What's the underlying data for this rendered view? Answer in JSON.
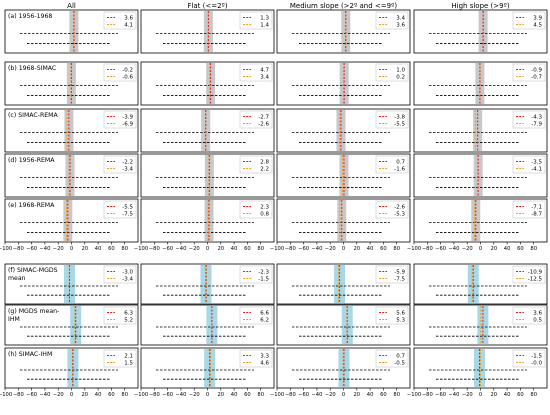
{
  "columns": [
    "All",
    "Flat (<=2º)",
    "Medium slope (>2º and <=9º)",
    "High slope (>9º)"
  ],
  "colors": {
    "mean_line": "#e0201c",
    "median_line": "#e8a020",
    "band_gray": "#c8c8c8",
    "band_blue": "#a8d8e6",
    "dashed": "#000000",
    "frame": "#000000"
  },
  "chart_data": {
    "type": "multi-panel",
    "x_axis": {
      "ticks": [
        -100,
        -80,
        -60,
        -40,
        -20,
        0,
        20,
        40,
        60,
        80
      ],
      "range": [
        -100,
        100
      ]
    },
    "group1": {
      "band_color": "gray",
      "rows": [
        {
          "label": "(a) 1956-1968",
          "values": [
            [
              3.6,
              4.1
            ],
            [
              1.3,
              1.4
            ],
            [
              3.4,
              3.6
            ],
            [
              3.9,
              4.5
            ]
          ]
        },
        {
          "label": "(b) 1968-SIMAC",
          "values": [
            [
              -0.2,
              -0.6
            ],
            [
              4.7,
              3.4
            ],
            [
              1.0,
              0.2
            ],
            [
              -0.9,
              -0.7
            ]
          ]
        },
        {
          "label": "(c) SIMAC-REMA",
          "values": [
            [
              -3.9,
              -6.9
            ],
            [
              -2.7,
              -2.6
            ],
            [
              -3.8,
              -5.5
            ],
            [
              -4.3,
              -7.9
            ]
          ]
        },
        {
          "label": "(d) 1956-REMA",
          "values": [
            [
              -2.2,
              -3.4
            ],
            [
              2.8,
              2.2
            ],
            [
              0.7,
              -1.6
            ],
            [
              -3.5,
              -4.1
            ]
          ]
        },
        {
          "label": "(e) 1968-REMA",
          "values": [
            [
              -5.5,
              -7.5
            ],
            [
              2.3,
              0.8
            ],
            [
              -2.6,
              -5.3
            ],
            [
              -7.1,
              -8.7
            ]
          ]
        }
      ]
    },
    "group2": {
      "band_color": "blue",
      "rows": [
        {
          "label": "(f) SIMAC-MGDS\nmean",
          "values": [
            [
              -3.0,
              -3.4
            ],
            [
              -2.3,
              -1.5
            ],
            [
              -5.9,
              -7.5
            ],
            [
              -10.9,
              -12.5
            ]
          ]
        },
        {
          "label": "(g) MGDS mean-\nIHM",
          "values": [
            [
              6.3,
              5.2
            ],
            [
              6.6,
              6.2
            ],
            [
              5.6,
              5.3
            ],
            [
              3.6,
              0.5
            ]
          ]
        },
        {
          "label": "(h) SIMAC-IHM",
          "values": [
            [
              2.1,
              1.5
            ],
            [
              3.3,
              4.6
            ],
            [
              0.7,
              -0.5
            ],
            [
              -1.5,
              -0.0
            ]
          ]
        }
      ]
    }
  }
}
